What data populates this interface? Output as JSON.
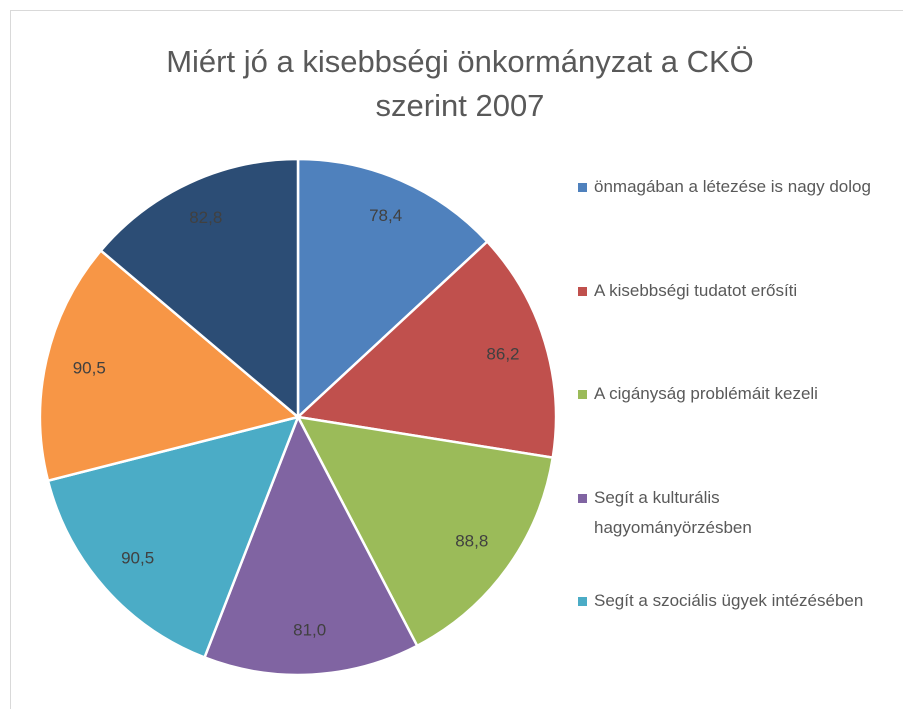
{
  "chart_data": {
    "type": "pie",
    "title": "Miért jó a kisebbségi önkormányzat a CKÖ szerint 2007",
    "categories": [
      "önmagában a létezése is nagy dolog",
      "A kisebbségi tudatot erősíti",
      "A cigányság problémáit kezeli",
      "Segít a kulturális hagyományörzésben",
      "Segít a szociális ügyek intézésében",
      null,
      null
    ],
    "values": [
      78.4,
      86.2,
      88.8,
      81.0,
      90.5,
      90.5,
      82.8
    ],
    "value_labels": [
      "78,4",
      "86,2",
      "88,8",
      "81,0",
      "90,5",
      "90,5",
      "82,8"
    ],
    "colors": [
      "#4f81bd",
      "#c0504d",
      "#9bbb59",
      "#8064a2",
      "#4bacc6",
      "#f79646",
      "#2c4d75"
    ],
    "legend": "right"
  }
}
